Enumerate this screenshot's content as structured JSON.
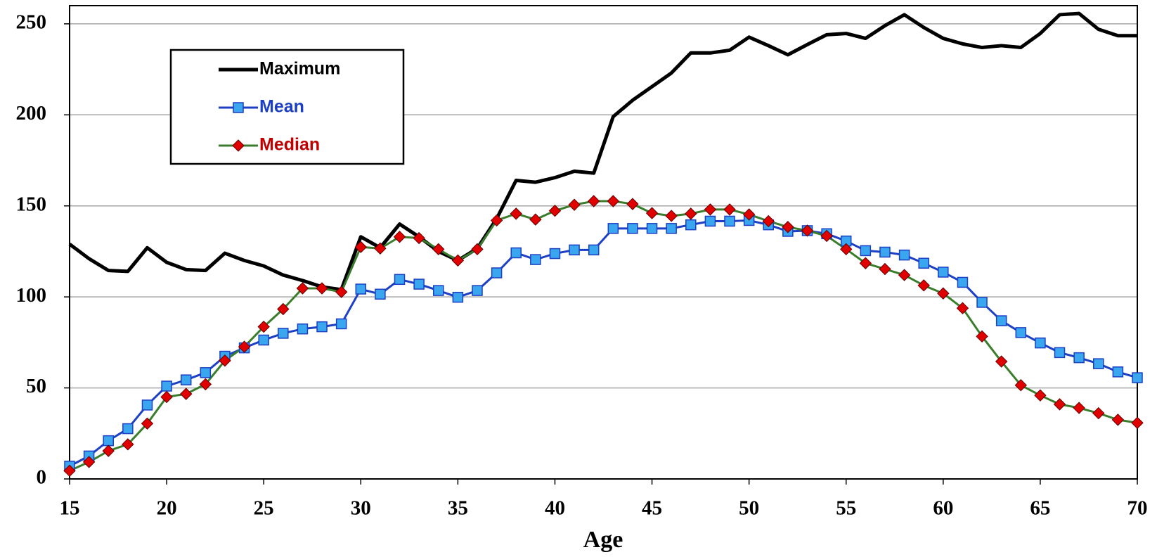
{
  "chart_data": {
    "type": "line",
    "x": [
      15,
      16,
      17,
      18,
      19,
      20,
      21,
      22,
      23,
      24,
      25,
      26,
      27,
      28,
      29,
      30,
      31,
      32,
      33,
      34,
      35,
      36,
      37,
      38,
      39,
      40,
      41,
      42,
      43,
      44,
      45,
      46,
      47,
      48,
      49,
      50,
      51,
      52,
      53,
      54,
      55,
      56,
      57,
      58,
      59,
      60,
      61,
      62,
      63,
      64,
      65,
      66,
      67,
      68,
      69,
      70
    ],
    "xlabel": "Age",
    "xlim": [
      15,
      70
    ],
    "xticks": [
      15,
      20,
      25,
      30,
      35,
      40,
      45,
      50,
      55,
      60,
      65,
      70
    ],
    "ylim": [
      0,
      260
    ],
    "yticks": [
      0,
      50,
      100,
      150,
      200,
      250
    ],
    "grid": true,
    "legend": "upper left",
    "series": [
      {
        "name": "Maximum",
        "color": "#000000",
        "legend_color": "#000000",
        "marker": "none",
        "values": [
          129,
          121,
          114.5,
          114,
          127,
          119,
          115,
          114.5,
          124,
          120,
          117,
          112,
          109,
          105.5,
          104,
          133,
          127,
          140,
          133,
          125,
          120,
          126.6,
          143,
          164,
          163,
          165.5,
          169,
          168,
          199,
          208,
          215.5,
          223,
          234,
          234,
          235.5,
          242.7,
          238,
          233,
          238.6,
          244,
          244.7,
          242,
          249,
          255,
          248,
          242,
          239,
          237,
          238,
          237,
          244.7,
          255,
          255.7,
          247,
          243.5,
          243.5
        ]
      },
      {
        "name": "Mean",
        "color": "#1c3fc4",
        "legend_color": "#1c3fc4",
        "marker": "square",
        "marker_color": "#3aa6f0",
        "values": [
          7,
          12.6,
          21,
          27.6,
          40.6,
          51,
          54.4,
          58.4,
          67.4,
          72,
          76.3,
          80,
          82.4,
          83.6,
          85.2,
          104.3,
          101.5,
          109.6,
          107,
          103.5,
          99.8,
          103.5,
          113.2,
          124.2,
          120.5,
          123.8,
          125.8,
          125.8,
          137.6,
          137.6,
          137.6,
          137.6,
          139.6,
          141.6,
          141.6,
          142,
          139.6,
          136,
          136.4,
          134.7,
          130.7,
          125.4,
          124.6,
          123,
          118.5,
          113.6,
          108,
          97,
          86.9,
          80.4,
          74.7,
          69.4,
          66.6,
          63.3,
          58.8,
          55.6
        ]
      },
      {
        "name": "Median",
        "color": "#3a7d2c",
        "legend_color": "#c00000",
        "marker": "diamond",
        "marker_color": "#e00000",
        "values": [
          4.5,
          9.3,
          15.4,
          19,
          30.4,
          45,
          46.7,
          52,
          65,
          72.6,
          83.6,
          93.3,
          104.7,
          104.7,
          102.7,
          127.4,
          126.6,
          133,
          132.3,
          126.2,
          120,
          126.2,
          142,
          145.7,
          142.5,
          147.3,
          150.6,
          152.6,
          152.6,
          151,
          146,
          144.5,
          145.7,
          148,
          148,
          145.3,
          141.6,
          138.4,
          136.4,
          133.5,
          126.2,
          118.5,
          115.3,
          112,
          106.3,
          101.9,
          93.8,
          78.3,
          64.5,
          51.5,
          45.9,
          41,
          39,
          36.1,
          32.5,
          30.8
        ]
      }
    ]
  }
}
